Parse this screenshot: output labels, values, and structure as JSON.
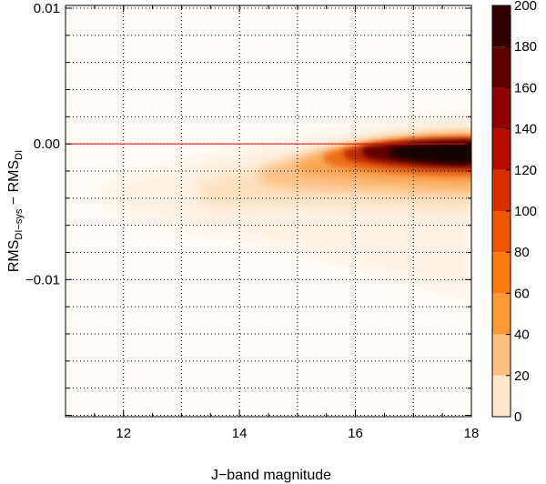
{
  "chart_data": {
    "type": "heatmap",
    "xlabel": "J−band magnitude",
    "ylabel": {
      "prefix": "RMS",
      "sub1": "DI−sys",
      "middle": " − RMS",
      "sub2": "DI"
    },
    "xlim": [
      11,
      18
    ],
    "ylim": [
      -0.0201,
      0.0102
    ],
    "x_ticks": [
      12,
      14,
      16,
      18
    ],
    "x_tick_labels": [
      "12",
      "14",
      "16",
      "18"
    ],
    "y_ticks": [
      0.01,
      0.0,
      -0.01
    ],
    "y_tick_labels": [
      "0.01",
      "0.00",
      "−0.01"
    ],
    "grid": true,
    "reference_line": {
      "y": 0.0,
      "color": "#ff0000"
    },
    "colorbar": {
      "min": 0,
      "max": 200,
      "step": 20,
      "tick_values": [
        0,
        20,
        40,
        60,
        80,
        100,
        120,
        140,
        160,
        180,
        200
      ],
      "tick_labels": [
        "0",
        "20",
        "40",
        "60",
        "80",
        "100",
        "120",
        "140",
        "160",
        "180",
        "200"
      ],
      "colors": [
        "#ffe6cc",
        "#ffbf80",
        "#ff9933",
        "#ff7a0d",
        "#f25500",
        "#d92e00",
        "#b80b00",
        "#8f0000",
        "#600000",
        "#330000"
      ]
    }
  }
}
